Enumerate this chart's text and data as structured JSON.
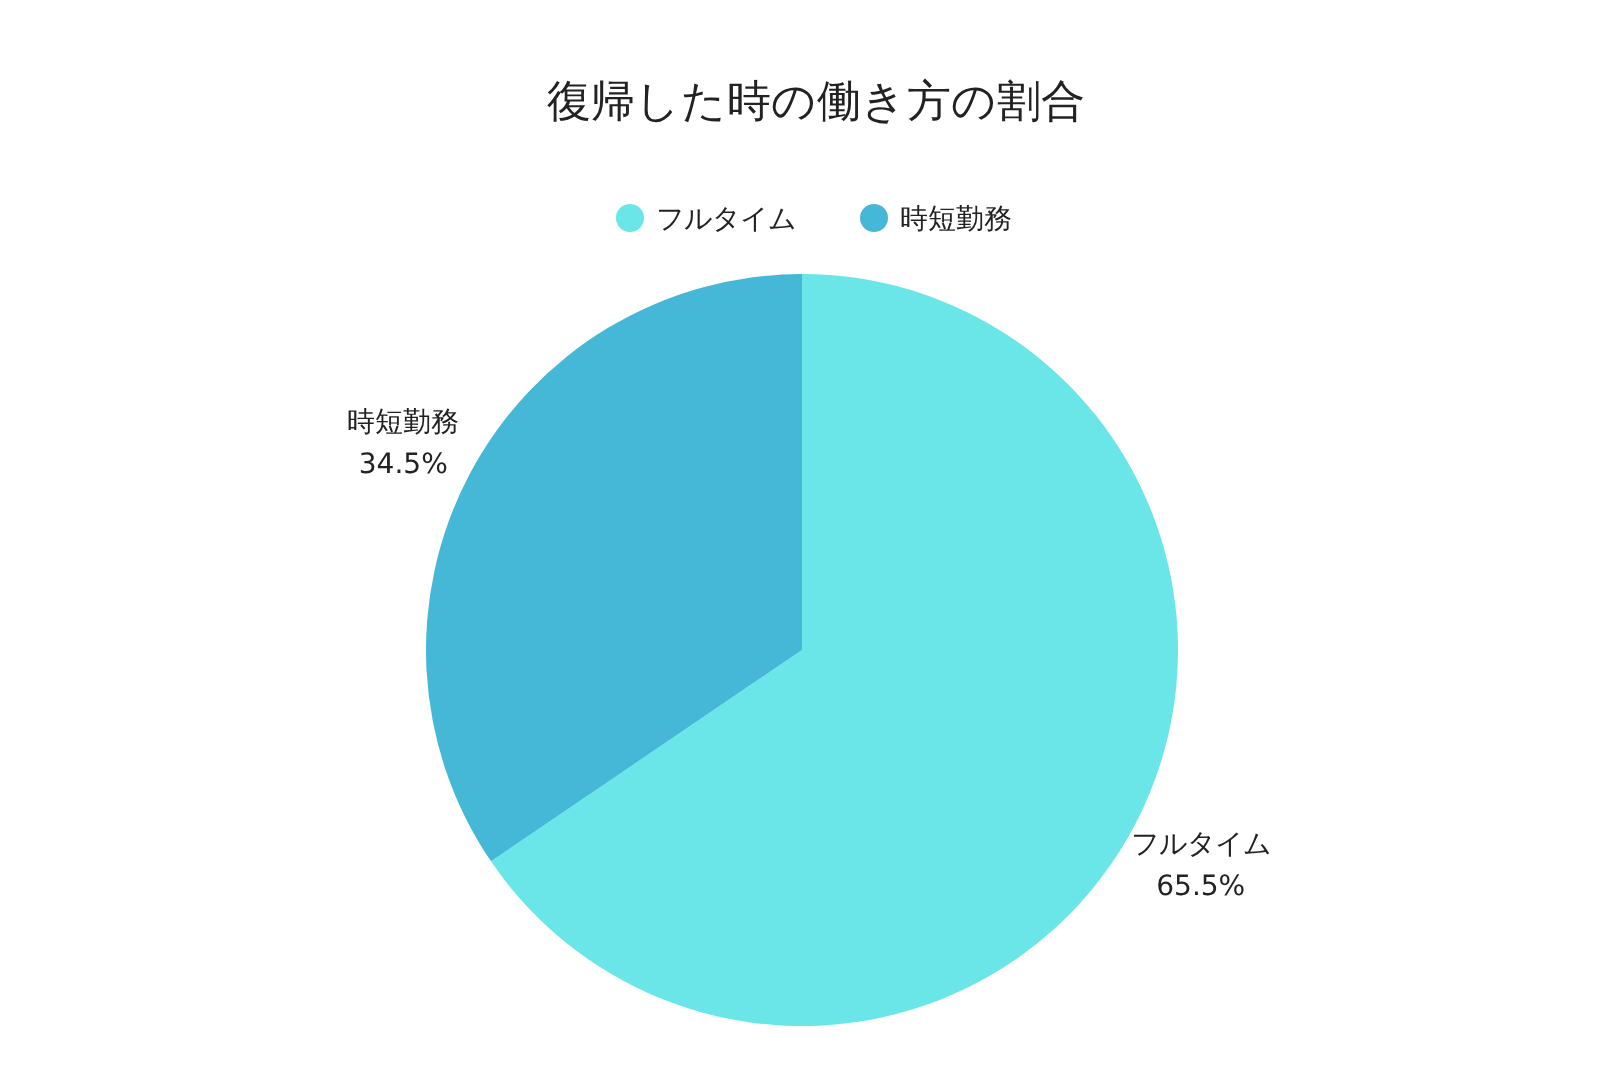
{
  "chart_data": {
    "type": "pie",
    "title": "復帰した時の働き方の割合",
    "categories": [
      "フルタイム",
      "時短勤務"
    ],
    "values": [
      65.5,
      34.5
    ],
    "colors": [
      "#6ae5e8",
      "#44b8d6"
    ],
    "value_labels": [
      "65.5%",
      "34.5%"
    ],
    "legend": "top"
  }
}
